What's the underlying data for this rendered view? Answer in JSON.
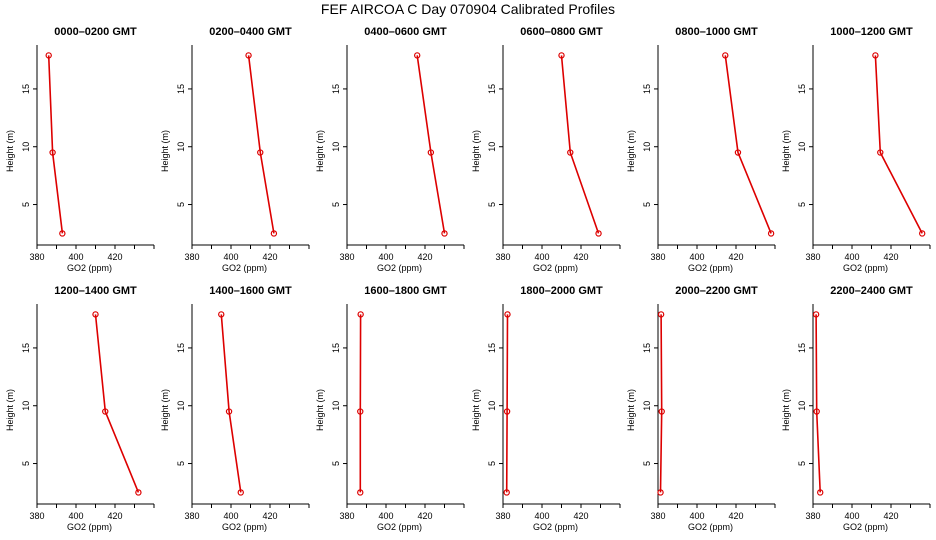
{
  "figure": {
    "title": "FEF AIRCOA C  Day 070904  Calibrated Profiles",
    "series_color": "#dd0000"
  },
  "chart_data": [
    {
      "type": "line",
      "title": "0000–0200 GMT",
      "xlabel": "GO2 (ppm)",
      "ylabel": "Height (m)",
      "xlim": [
        380,
        440
      ],
      "ylim": [
        1.5,
        18.8
      ],
      "xticks": [
        "380",
        "400",
        "420"
      ],
      "yticks": [
        "5",
        "10",
        "15"
      ],
      "points": [
        {
          "x": 386.0,
          "y": 17.9
        },
        {
          "x": 388.0,
          "y": 9.5
        },
        {
          "x": 393.0,
          "y": 2.5
        }
      ]
    },
    {
      "type": "line",
      "title": "0200–0400 GMT",
      "xlabel": "GO2 (ppm)",
      "ylabel": "Height (m)",
      "xlim": [
        380,
        440
      ],
      "ylim": [
        1.5,
        18.8
      ],
      "xticks": [
        "380",
        "400",
        "420"
      ],
      "yticks": [
        "5",
        "10",
        "15"
      ],
      "points": [
        {
          "x": 409.0,
          "y": 17.9
        },
        {
          "x": 415.0,
          "y": 9.5
        },
        {
          "x": 422.0,
          "y": 2.5
        }
      ]
    },
    {
      "type": "line",
      "title": "0400–0600 GMT",
      "xlabel": "GO2 (ppm)",
      "ylabel": "Height (m)",
      "xlim": [
        380,
        440
      ],
      "ylim": [
        1.5,
        18.8
      ],
      "xticks": [
        "380",
        "400",
        "420"
      ],
      "yticks": [
        "5",
        "10",
        "15"
      ],
      "points": [
        {
          "x": 416.0,
          "y": 17.9
        },
        {
          "x": 423.0,
          "y": 9.5
        },
        {
          "x": 430.0,
          "y": 2.5
        }
      ]
    },
    {
      "type": "line",
      "title": "0600–0800 GMT",
      "xlabel": "GO2 (ppm)",
      "ylabel": "Height (m)",
      "xlim": [
        380,
        440
      ],
      "ylim": [
        1.5,
        18.8
      ],
      "xticks": [
        "380",
        "400",
        "420"
      ],
      "yticks": [
        "5",
        "10",
        "15"
      ],
      "points": [
        {
          "x": 410.0,
          "y": 17.9
        },
        {
          "x": 414.5,
          "y": 9.5
        },
        {
          "x": 429.0,
          "y": 2.5
        }
      ]
    },
    {
      "type": "line",
      "title": "0800–1000 GMT",
      "xlabel": "GO2 (ppm)",
      "ylabel": "Height (m)",
      "xlim": [
        380,
        440
      ],
      "ylim": [
        1.5,
        18.8
      ],
      "xticks": [
        "380",
        "400",
        "420"
      ],
      "yticks": [
        "5",
        "10",
        "15"
      ],
      "points": [
        {
          "x": 414.5,
          "y": 17.9
        },
        {
          "x": 421.0,
          "y": 9.5
        },
        {
          "x": 438.0,
          "y": 2.5
        }
      ]
    },
    {
      "type": "line",
      "title": "1000–1200 GMT",
      "xlabel": "GO2 (ppm)",
      "ylabel": "Height (m)",
      "xlim": [
        380,
        440
      ],
      "ylim": [
        1.5,
        18.8
      ],
      "xticks": [
        "380",
        "400",
        "420"
      ],
      "yticks": [
        "5",
        "10",
        "15"
      ],
      "points": [
        {
          "x": 412.0,
          "y": 17.9
        },
        {
          "x": 414.5,
          "y": 9.5
        },
        {
          "x": 436.0,
          "y": 2.5
        }
      ]
    },
    {
      "type": "line",
      "title": "1200–1400 GMT",
      "xlabel": "GO2 (ppm)",
      "ylabel": "Height (m)",
      "xlim": [
        380,
        440
      ],
      "ylim": [
        1.5,
        18.8
      ],
      "xticks": [
        "380",
        "400",
        "420"
      ],
      "yticks": [
        "5",
        "10",
        "15"
      ],
      "points": [
        {
          "x": 410.0,
          "y": 17.9
        },
        {
          "x": 415.0,
          "y": 9.5
        },
        {
          "x": 432.0,
          "y": 2.5
        }
      ]
    },
    {
      "type": "line",
      "title": "1400–1600 GMT",
      "xlabel": "GO2 (ppm)",
      "ylabel": "Height (m)",
      "xlim": [
        380,
        440
      ],
      "ylim": [
        1.5,
        18.8
      ],
      "xticks": [
        "380",
        "400",
        "420"
      ],
      "yticks": [
        "5",
        "10",
        "15"
      ],
      "points": [
        {
          "x": 395.0,
          "y": 17.9
        },
        {
          "x": 399.0,
          "y": 9.5
        },
        {
          "x": 405.0,
          "y": 2.5
        }
      ]
    },
    {
      "type": "line",
      "title": "1600–1800 GMT",
      "xlabel": "GO2 (ppm)",
      "ylabel": "Height (m)",
      "xlim": [
        380,
        440
      ],
      "ylim": [
        1.5,
        18.8
      ],
      "xticks": [
        "380",
        "400",
        "420"
      ],
      "yticks": [
        "5",
        "10",
        "15"
      ],
      "points": [
        {
          "x": 387.0,
          "y": 17.9
        },
        {
          "x": 386.8,
          "y": 9.5
        },
        {
          "x": 386.8,
          "y": 2.5
        }
      ]
    },
    {
      "type": "line",
      "title": "1800–2000 GMT",
      "xlabel": "GO2 (ppm)",
      "ylabel": "Height (m)",
      "xlim": [
        380,
        440
      ],
      "ylim": [
        1.5,
        18.8
      ],
      "xticks": [
        "380",
        "400",
        "420"
      ],
      "yticks": [
        "5",
        "10",
        "15"
      ],
      "points": [
        {
          "x": 382.3,
          "y": 17.9
        },
        {
          "x": 382.1,
          "y": 9.5
        },
        {
          "x": 381.9,
          "y": 2.5
        }
      ]
    },
    {
      "type": "line",
      "title": "2000–2200 GMT",
      "xlabel": "GO2 (ppm)",
      "ylabel": "Height (m)",
      "xlim": [
        380,
        440
      ],
      "ylim": [
        1.5,
        18.8
      ],
      "xticks": [
        "380",
        "400",
        "420"
      ],
      "yticks": [
        "5",
        "10",
        "15"
      ],
      "points": [
        {
          "x": 381.6,
          "y": 17.9
        },
        {
          "x": 381.9,
          "y": 9.5
        },
        {
          "x": 381.3,
          "y": 2.5
        }
      ]
    },
    {
      "type": "line",
      "title": "2200–2400 GMT",
      "xlabel": "GO2 (ppm)",
      "ylabel": "Height (m)",
      "xlim": [
        380,
        440
      ],
      "ylim": [
        1.5,
        18.8
      ],
      "xticks": [
        "380",
        "400",
        "420"
      ],
      "yticks": [
        "5",
        "10",
        "15"
      ],
      "points": [
        {
          "x": 381.6,
          "y": 17.9
        },
        {
          "x": 381.9,
          "y": 9.5
        },
        {
          "x": 383.7,
          "y": 2.5
        }
      ]
    }
  ]
}
